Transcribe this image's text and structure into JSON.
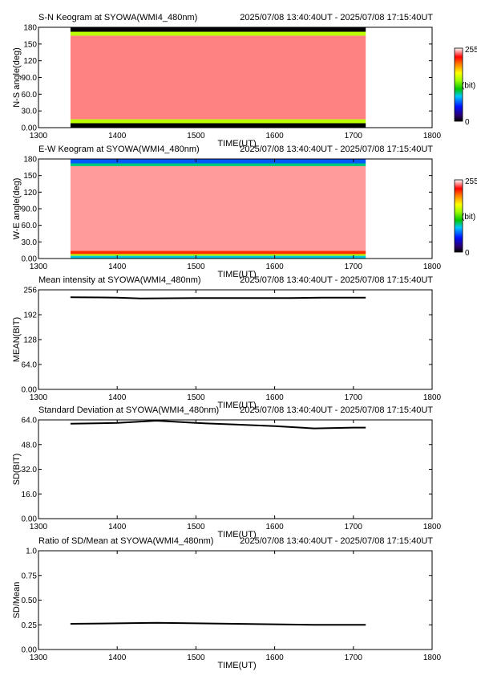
{
  "charts": [
    {
      "kind": "keogram",
      "title": "S-N Keogram at SYOWA(WMI4_480nm)",
      "time_range": "2025/07/08 13:40:40UT - 2025/07/08 17:15:40UT",
      "ylabel": "N-S angle(deg)",
      "xlabel": "TIME(UT)",
      "yticks": [
        "0.00",
        "30.0",
        "60.0",
        "90.0",
        "120",
        "150",
        "180"
      ],
      "xticks": [
        "1300",
        "1400",
        "1500",
        "1600",
        "1700",
        "1800"
      ],
      "colorbar": {
        "max": "255",
        "unit": "(bit)",
        "min": "0"
      }
    },
    {
      "kind": "keogram",
      "title": "E-W Keogram at SYOWA(WMI4_480nm)",
      "time_range": "2025/07/08 13:40:40UT - 2025/07/08 17:15:40UT",
      "ylabel": "W-E angle(deg)",
      "xlabel": "TIME(UT)",
      "yticks": [
        "0.00",
        "30.0",
        "60.0",
        "90.0",
        "120",
        "150",
        "180"
      ],
      "xticks": [
        "1300",
        "1400",
        "1500",
        "1600",
        "1700",
        "1800"
      ],
      "colorbar": {
        "max": "255",
        "unit": "(bit)",
        "min": "0"
      }
    },
    {
      "kind": "line",
      "title": "Mean intensity at SYOWA(WMI4_480nm)",
      "time_range": "2025/07/08 13:40:40UT - 2025/07/08 17:15:40UT",
      "ylabel": "MEAN(BIT)",
      "xlabel": "TIME(UT)",
      "yticks": [
        "0.00",
        "64.0",
        "128",
        "192",
        "256"
      ],
      "xticks": [
        "1300",
        "1400",
        "1500",
        "1600",
        "1700",
        "1800"
      ]
    },
    {
      "kind": "line",
      "title": "Standard Deviation at SYOWA(WMI4_480nm)",
      "time_range": "2025/07/08 13:40:40UT - 2025/07/08 17:15:40UT",
      "ylabel": "SD(BIT)",
      "xlabel": "TIME(UT)",
      "yticks": [
        "0.00",
        "16.0",
        "32.0",
        "48.0",
        "64.0"
      ],
      "xticks": [
        "1300",
        "1400",
        "1500",
        "1600",
        "1700",
        "1800"
      ]
    },
    {
      "kind": "line",
      "title": "Ratio of SD/Mean at SYOWA(WMI4_480nm)",
      "time_range": "2025/07/08 13:40:40UT - 2025/07/08 17:15:40UT",
      "ylabel": "SD/Mean",
      "xlabel": "TIME(UT)",
      "yticks": [
        "0.00",
        "0.25",
        "0.50",
        "0.75",
        "1.0"
      ],
      "xticks": [
        "1300",
        "1400",
        "1500",
        "1600",
        "1700",
        "1800"
      ]
    }
  ],
  "chart_data": [
    {
      "type": "heatmap",
      "title": "S-N Keogram at SYOWA(WMI4_480nm)",
      "xlabel": "TIME(UT)",
      "ylabel": "N-S angle(deg)",
      "xlim": [
        1300,
        1800
      ],
      "ylim": [
        0,
        180
      ],
      "colorbar_range": [
        0,
        255
      ],
      "data_time_range_ut": [
        1340.67,
        1715.67
      ],
      "bands": [
        {
          "from_deg": 0,
          "to_deg": 8,
          "value": 0
        },
        {
          "from_deg": 8,
          "to_deg": 15,
          "value": 150
        },
        {
          "from_deg": 15,
          "to_deg": 165,
          "value": 240
        },
        {
          "from_deg": 165,
          "to_deg": 172,
          "value": 150
        },
        {
          "from_deg": 172,
          "to_deg": 180,
          "value": 0
        }
      ]
    },
    {
      "type": "heatmap",
      "title": "E-W Keogram at SYOWA(WMI4_480nm)",
      "xlabel": "TIME(UT)",
      "ylabel": "W-E angle(deg)",
      "xlim": [
        1300,
        1800
      ],
      "ylim": [
        0,
        180
      ],
      "colorbar_range": [
        0,
        255
      ],
      "data_time_range_ut": [
        1340.67,
        1715.67
      ],
      "bands": [
        {
          "from_deg": 0,
          "to_deg": 5,
          "value": 90
        },
        {
          "from_deg": 5,
          "to_deg": 8,
          "value": 150
        },
        {
          "from_deg": 8,
          "to_deg": 14,
          "value": 215
        },
        {
          "from_deg": 14,
          "to_deg": 167,
          "value": 243
        },
        {
          "from_deg": 167,
          "to_deg": 172,
          "value": 100
        },
        {
          "from_deg": 172,
          "to_deg": 180,
          "value": 65
        }
      ]
    },
    {
      "type": "line",
      "title": "Mean intensity at SYOWA(WMI4_480nm)",
      "xlabel": "TIME(UT)",
      "ylabel": "MEAN(BIT)",
      "xlim": [
        1300,
        1800
      ],
      "ylim": [
        0,
        256
      ],
      "x": [
        1340.67,
        1400,
        1430,
        1500,
        1560,
        1620,
        1660,
        1700,
        1715.67
      ],
      "y": [
        237,
        236,
        234,
        235,
        235,
        235,
        236,
        236,
        236
      ]
    },
    {
      "type": "line",
      "title": "Standard Deviation at SYOWA(WMI4_480nm)",
      "xlabel": "TIME(UT)",
      "ylabel": "SD(BIT)",
      "xlim": [
        1300,
        1800
      ],
      "ylim": [
        0,
        64
      ],
      "x": [
        1340.67,
        1400,
        1450,
        1500,
        1550,
        1600,
        1650,
        1700,
        1715.67
      ],
      "y": [
        61.5,
        62,
        63.5,
        62,
        61,
        60,
        58.5,
        59,
        59
      ]
    },
    {
      "type": "line",
      "title": "Ratio of SD/Mean at SYOWA(WMI4_480nm)",
      "xlabel": "TIME(UT)",
      "ylabel": "SD/Mean",
      "xlim": [
        1300,
        1800
      ],
      "ylim": [
        0,
        1
      ],
      "x": [
        1340.67,
        1400,
        1450,
        1500,
        1550,
        1600,
        1650,
        1715.67
      ],
      "y": [
        0.26,
        0.265,
        0.27,
        0.265,
        0.26,
        0.255,
        0.25,
        0.25
      ]
    }
  ]
}
